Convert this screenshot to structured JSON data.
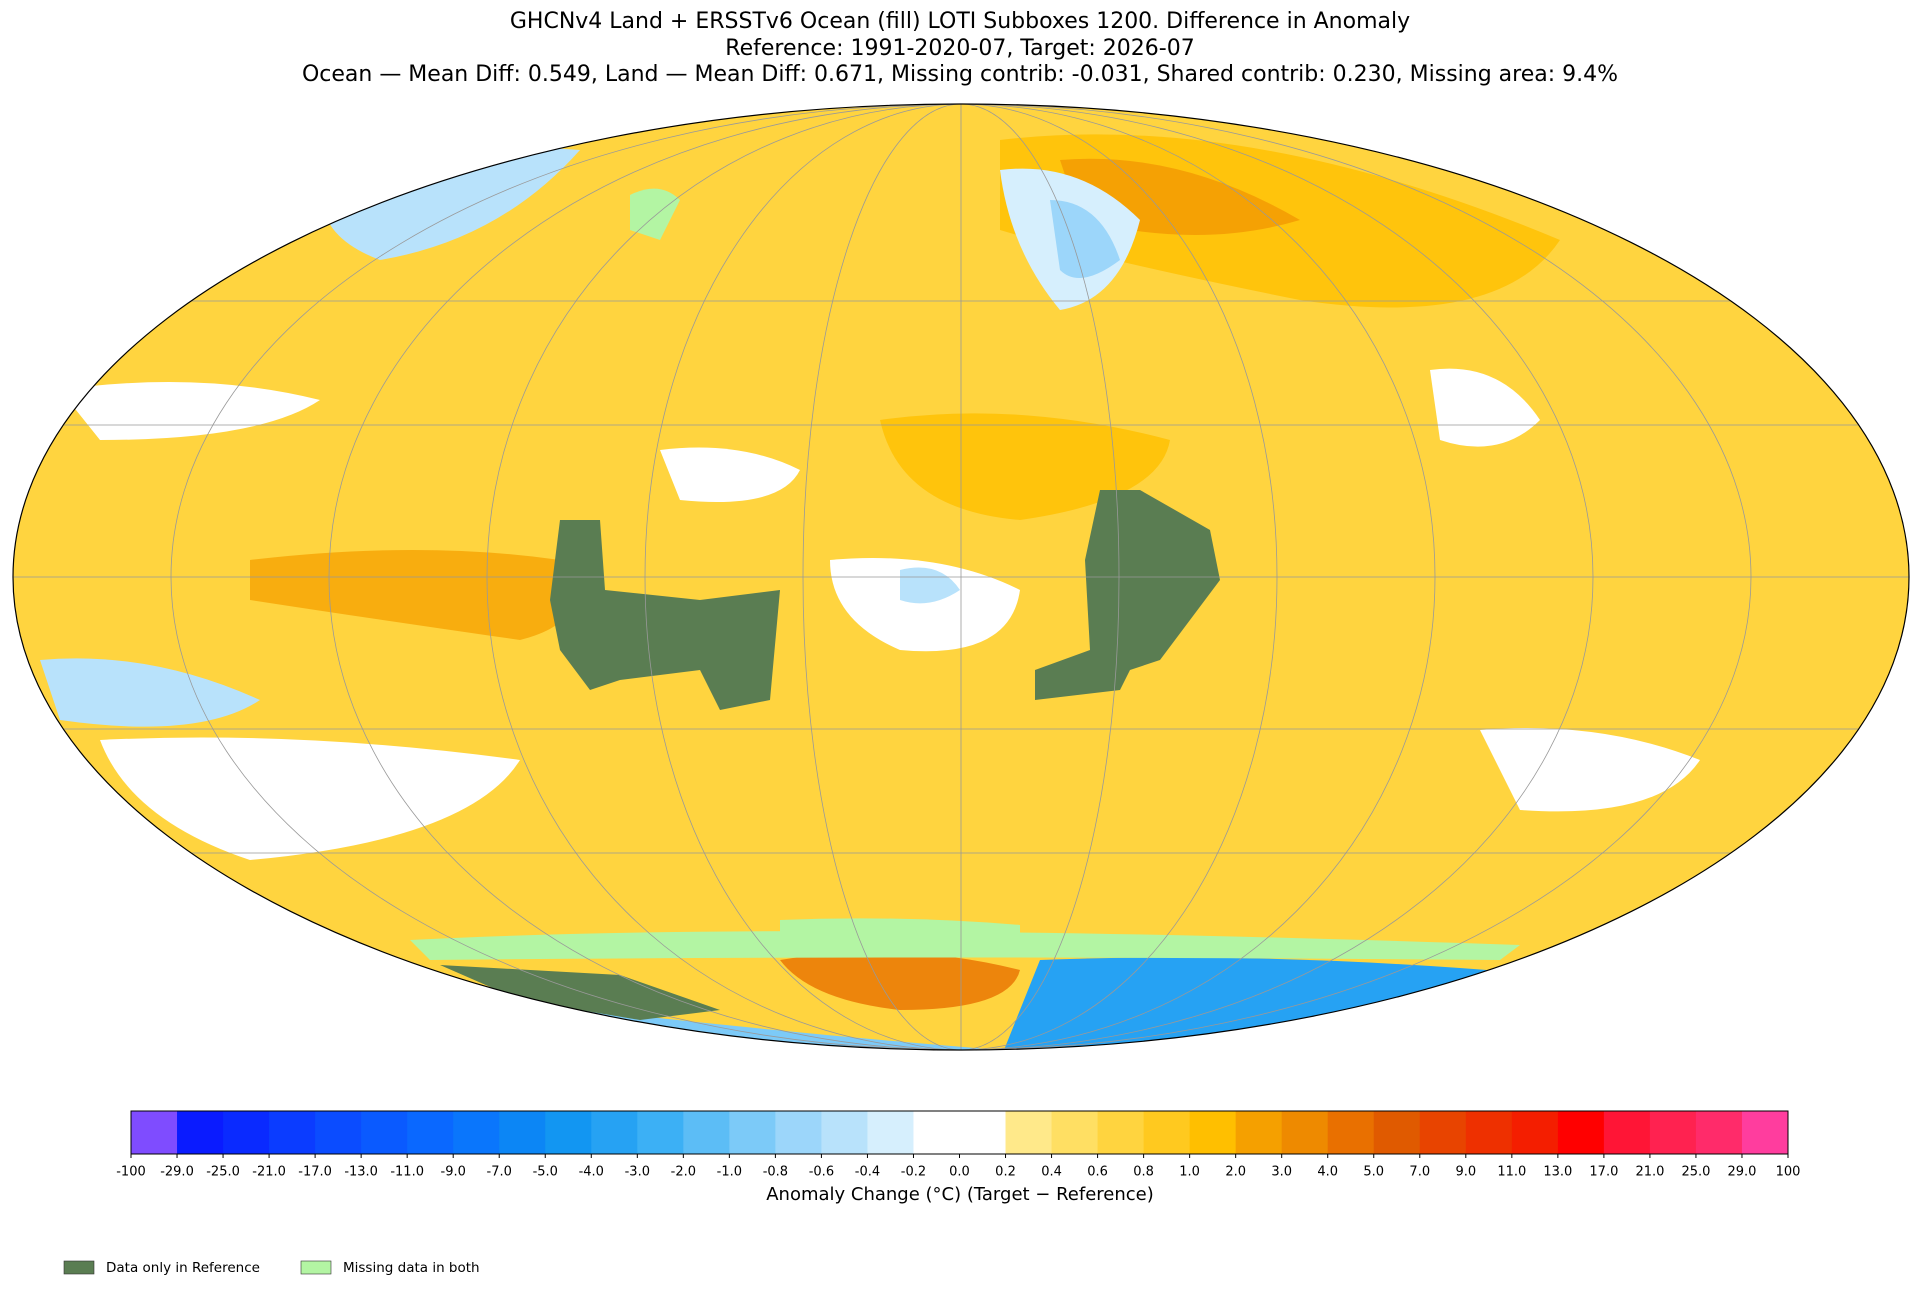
{
  "header": {
    "title_lines": [
      "GHCNv4 Land + ERSSTv6 Ocean (fill) LOTI Subboxes 1200. Difference in Anomaly",
      "Reference: 1991-2020-07, Target: 2026-07",
      "Ocean — Mean Diff: 0.549, Land — Mean Diff: 0.671, Missing contrib: -0.031, Shared contrib: 0.230, Missing area: 9.4%"
    ]
  },
  "colorbar": {
    "label": "Anomaly Change (°C) (Target − Reference)",
    "ticks": [
      -100,
      {
        "value": -29,
        "label": "-29.0"
      },
      {
        "value": -25,
        "label": "-25.0"
      },
      {
        "value": -21,
        "label": "-21.0"
      },
      {
        "value": -17,
        "label": "-17.0"
      },
      {
        "value": -13,
        "label": "-13.0"
      },
      {
        "value": -11,
        "label": "-11.0"
      },
      {
        "value": -9,
        "label": "-9.0"
      },
      {
        "value": -7,
        "label": "-7.0"
      },
      {
        "value": -5,
        "label": "-5.0"
      },
      {
        "value": -4,
        "label": "-4.0"
      },
      {
        "value": -3,
        "label": "-3.0"
      },
      {
        "value": -2,
        "label": "-2.0"
      },
      {
        "value": -1,
        "label": "-1.0"
      },
      -0.8,
      -0.6,
      -0.4,
      -0.2,
      {
        "value": 0,
        "label": "0.0"
      },
      0.2,
      0.4,
      0.6,
      0.8,
      {
        "value": 1,
        "label": "1.0"
      },
      {
        "value": 2,
        "label": "2.0"
      },
      {
        "value": 3,
        "label": "3.0"
      },
      {
        "value": 4,
        "label": "4.0"
      },
      {
        "value": 5,
        "label": "5.0"
      },
      {
        "value": 7,
        "label": "7.0"
      },
      {
        "value": 9,
        "label": "9.0"
      },
      {
        "value": 11,
        "label": "11.0"
      },
      {
        "value": 13,
        "label": "13.0"
      },
      {
        "value": 17,
        "label": "17.0"
      },
      {
        "value": 21,
        "label": "21.0"
      },
      {
        "value": 25,
        "label": "25.0"
      },
      {
        "value": 29,
        "label": "29.0"
      },
      100
    ],
    "colors": [
      "#7f4cff",
      "#0a1bff",
      "#0a2aff",
      "#0b3cff",
      "#0b4cff",
      "#0a5aff",
      "#0a68ff",
      "#0a76fc",
      "#0c86f5",
      "#1296f2",
      "#26a2f3",
      "#3cb0f5",
      "#5cbdf6",
      "#7ccaf8",
      "#9cd6fa",
      "#b8e2fb",
      "#d6effd",
      "#ffffff",
      "#ffffff",
      "#ffe98a",
      "#ffdf63",
      "#ffd43f",
      "#ffc91f",
      "#ffbf00",
      "#f5a000",
      "#ee8a00",
      "#e97000",
      "#e05a00",
      "#e84400",
      "#ee3000",
      "#f41e00",
      "#ff0000",
      "#ff1536",
      "#ff2250",
      "#ff2b6a",
      "#ff3d9e"
    ]
  },
  "legend": [
    {
      "name": "Data only in Reference",
      "color": "#5a7d52"
    },
    {
      "name": "Missing data in both",
      "color": "#b3f5a3"
    }
  ]
}
